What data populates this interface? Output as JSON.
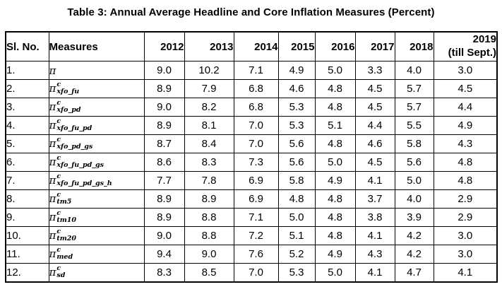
{
  "title": "Table 3: Annual Average Headline and Core Inflation Measures (Percent)",
  "table": {
    "headers": {
      "sl_no": "Sl. No.",
      "measures": "Measures",
      "years": [
        "2012",
        "2013",
        "2014",
        "2015",
        "2016",
        "2017",
        "2018"
      ],
      "last_line1": "2019",
      "last_line2": "(till Sept.)"
    },
    "rows": [
      {
        "sl": "1.",
        "base": "π",
        "sup": "",
        "sub": "",
        "values": [
          "9.0",
          "10.2",
          "7.1",
          "4.9",
          "5.0",
          "3.3",
          "4.0",
          "3.0"
        ]
      },
      {
        "sl": "2.",
        "base": "π",
        "sup": "c",
        "sub": "xfo_fu",
        "values": [
          "8.9",
          "7.9",
          "6.8",
          "4.6",
          "4.8",
          "4.5",
          "5.7",
          "4.5"
        ]
      },
      {
        "sl": "3.",
        "base": "π",
        "sup": "c",
        "sub": "xfo_pd",
        "values": [
          "9.0",
          "8.2",
          "6.8",
          "5.3",
          "4.8",
          "4.5",
          "5.7",
          "4.4"
        ]
      },
      {
        "sl": "4.",
        "base": "π",
        "sup": "c",
        "sub": "xfo_fu_pd",
        "values": [
          "8.9",
          "8.1",
          "7.0",
          "5.3",
          "5.1",
          "4.4",
          "5.5",
          "4.9"
        ]
      },
      {
        "sl": "5.",
        "base": "π",
        "sup": "c",
        "sub": "xfo_pd_gs",
        "values": [
          "8.7",
          "8.4",
          "7.0",
          "5.6",
          "4.8",
          "4.6",
          "5.8",
          "4.3"
        ]
      },
      {
        "sl": "6.",
        "base": "π",
        "sup": "c",
        "sub": "xfo_fu_pd_gs",
        "values": [
          "8.6",
          "8.3",
          "7.3",
          "5.6",
          "5.0",
          "4.5",
          "5.6",
          "4.8"
        ]
      },
      {
        "sl": "7.",
        "base": "π",
        "sup": "c",
        "sub": "xfo_fu_pd_gs_h",
        "values": [
          "7.7",
          "7.8",
          "6.9",
          "5.8",
          "4.9",
          "4.1",
          "5.0",
          "4.8"
        ]
      },
      {
        "sl": "8.",
        "base": "π",
        "sup": "c",
        "sub": "tm5",
        "values": [
          "8.9",
          "8.9",
          "6.9",
          "4.8",
          "4.8",
          "3.7",
          "4.0",
          "2.9"
        ]
      },
      {
        "sl": "9.",
        "base": "π",
        "sup": "c",
        "sub": "tm10",
        "values": [
          "8.9",
          "8.8",
          "7.1",
          "5.0",
          "4.8",
          "3.8",
          "3.9",
          "2.9"
        ]
      },
      {
        "sl": "10.",
        "base": "π",
        "sup": "c",
        "sub": "tm20",
        "values": [
          "9.0",
          "8.8",
          "7.2",
          "5.1",
          "4.8",
          "4.1",
          "4.2",
          "3.0"
        ]
      },
      {
        "sl": "11.",
        "base": "π",
        "sup": "c",
        "sub": "med",
        "values": [
          "9.4",
          "9.0",
          "7.6",
          "5.2",
          "4.9",
          "4.3",
          "4.2",
          "3.0"
        ]
      },
      {
        "sl": "12.",
        "base": "π",
        "sup": "c",
        "sub": "sd",
        "values": [
          "8.3",
          "8.5",
          "7.0",
          "5.3",
          "5.0",
          "4.1",
          "4.7",
          "4.1"
        ]
      }
    ]
  },
  "chart_data": {
    "type": "table",
    "title": "Table 3: Annual Average Headline and Core Inflation Measures (Percent)",
    "columns": [
      "Sl. No.",
      "Measures",
      "2012",
      "2013",
      "2014",
      "2015",
      "2016",
      "2017",
      "2018",
      "2019 (till Sept.)"
    ],
    "measures": [
      "pi",
      "pi^c_xfo_fu",
      "pi^c_xfo_pd",
      "pi^c_xfo_fu_pd",
      "pi^c_xfo_pd_gs",
      "pi^c_xfo_fu_pd_gs",
      "pi^c_xfo_fu_pd_gs_h",
      "pi^c_tm5",
      "pi^c_tm10",
      "pi^c_tm20",
      "pi^c_med",
      "pi^c_sd"
    ],
    "values": [
      [
        9.0,
        10.2,
        7.1,
        4.9,
        5.0,
        3.3,
        4.0,
        3.0
      ],
      [
        8.9,
        7.9,
        6.8,
        4.6,
        4.8,
        4.5,
        5.7,
        4.5
      ],
      [
        9.0,
        8.2,
        6.8,
        5.3,
        4.8,
        4.5,
        5.7,
        4.4
      ],
      [
        8.9,
        8.1,
        7.0,
        5.3,
        5.1,
        4.4,
        5.5,
        4.9
      ],
      [
        8.7,
        8.4,
        7.0,
        5.6,
        4.8,
        4.6,
        5.8,
        4.3
      ],
      [
        8.6,
        8.3,
        7.3,
        5.6,
        5.0,
        4.5,
        5.6,
        4.8
      ],
      [
        7.7,
        7.8,
        6.9,
        5.8,
        4.9,
        4.1,
        5.0,
        4.8
      ],
      [
        8.9,
        8.9,
        6.9,
        4.8,
        4.8,
        3.7,
        4.0,
        2.9
      ],
      [
        8.9,
        8.8,
        7.1,
        5.0,
        4.8,
        3.8,
        3.9,
        2.9
      ],
      [
        9.0,
        8.8,
        7.2,
        5.1,
        4.8,
        4.1,
        4.2,
        3.0
      ],
      [
        9.4,
        9.0,
        7.6,
        5.2,
        4.9,
        4.3,
        4.2,
        3.0
      ],
      [
        8.3,
        8.5,
        7.0,
        5.3,
        5.0,
        4.1,
        4.7,
        4.1
      ]
    ]
  }
}
